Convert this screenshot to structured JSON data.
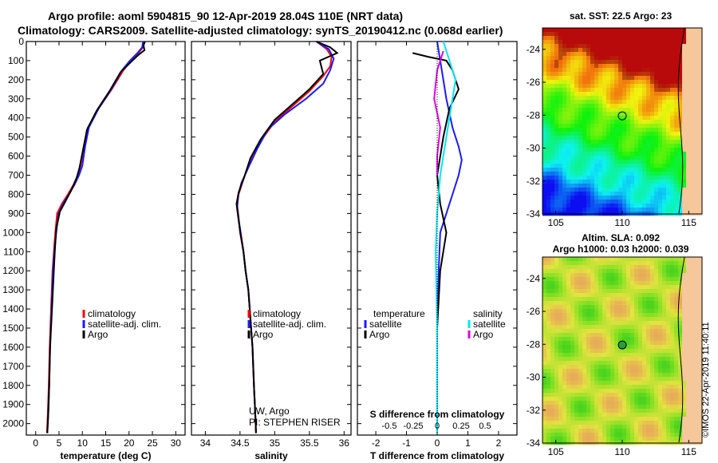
{
  "header": {
    "line1": "Argo profile: aoml 5904815_90 12-Apr-2019 28.04S 110E (NRT data)",
    "line2": "Climatology: CARS2009. Satellite-adjusted climatology: synTS_20190412.nc (0.068d earlier)"
  },
  "watermark": "©IMOS 22-Apr-2019 11:40:11",
  "colors": {
    "climatology": "#ff0000",
    "satellite": "#1a1aff",
    "argo": "#000000",
    "cyan": "#00e5ff",
    "magenta": "#e600e6"
  },
  "chart_data": [
    {
      "type": "line",
      "id": "temperature",
      "xlabel": "temperature (deg C)",
      "ylabel": "",
      "xlim": [
        -2,
        32
      ],
      "ylim": [
        2060,
        0
      ],
      "xticks": [
        "0",
        "5",
        "10",
        "15",
        "20",
        "25",
        "30"
      ],
      "xtick_values": [
        0,
        5,
        10,
        15,
        20,
        25,
        30
      ],
      "yticks": [
        "0",
        "100",
        "200",
        "300",
        "400",
        "500",
        "600",
        "700",
        "800",
        "900",
        "1000",
        "1100",
        "1200",
        "1300",
        "1400",
        "1500",
        "1600",
        "1700",
        "1800",
        "1900",
        "2000"
      ],
      "legend": {
        "position": "bottom-right",
        "items": [
          "climatology",
          "satellite-adj. clim.",
          "Argo"
        ]
      },
      "series": [
        {
          "name": "climatology",
          "color": "#ff0000",
          "x": [
            23.3,
            23.0,
            22.0,
            20.5,
            18.8,
            16.3,
            13.5,
            11.2,
            10.4,
            9.6,
            9.0,
            8.1,
            6.9,
            5.6,
            4.6,
            4.2,
            3.9,
            3.6,
            3.3,
            3.0,
            2.8,
            2.6,
            2.4
          ],
          "y": [
            0,
            30,
            60,
            100,
            150,
            250,
            350,
            450,
            550,
            650,
            700,
            750,
            800,
            850,
            900,
            1000,
            1100,
            1200,
            1400,
            1600,
            1800,
            1950,
            2050
          ]
        },
        {
          "name": "satellite-adj. clim.",
          "color": "#1a1aff",
          "x": [
            23.0,
            22.8,
            21.8,
            20.2,
            18.5,
            16.2,
            13.5,
            11.4,
            10.6,
            10.0,
            9.3,
            8.3,
            7.1,
            5.9,
            4.9,
            4.4,
            4.0,
            3.7,
            3.4,
            3.1,
            2.9,
            2.7,
            2.5
          ],
          "y": [
            0,
            30,
            60,
            100,
            150,
            250,
            350,
            450,
            550,
            650,
            700,
            750,
            800,
            850,
            900,
            1000,
            1100,
            1200,
            1400,
            1600,
            1800,
            1950,
            2050
          ]
        },
        {
          "name": "Argo",
          "color": "#000000",
          "x": [
            23.4,
            23.1,
            23.3,
            22.0,
            20.3,
            18.2,
            15.8,
            13.1,
            11.0,
            10.2,
            9.4,
            8.7,
            7.6,
            6.3,
            5.2,
            4.4,
            4.1,
            3.8,
            3.5,
            3.1,
            2.9,
            2.7,
            2.5
          ],
          "y": [
            0,
            20,
            45,
            70,
            110,
            160,
            260,
            360,
            460,
            560,
            660,
            720,
            780,
            840,
            890,
            980,
            1100,
            1250,
            1400,
            1600,
            1800,
            1950,
            2050
          ]
        }
      ]
    },
    {
      "type": "line",
      "id": "salinity",
      "xlabel": "salinity",
      "xlim": [
        33.8,
        36.1
      ],
      "ylim": [
        2060,
        0
      ],
      "xticks": [
        "34",
        "34.5",
        "35",
        "35.5",
        "36"
      ],
      "xtick_values": [
        34,
        34.5,
        35,
        35.5,
        36
      ],
      "legend": {
        "position": "bottom-right",
        "items": [
          "climatology",
          "satellite-adj. clim.",
          "Argo"
        ]
      },
      "annotations": [
        "UW, Argo",
        "PI: STEPHEN RISER"
      ],
      "series": [
        {
          "name": "climatology",
          "color": "#ff0000",
          "x": [
            35.6,
            35.75,
            35.82,
            35.8,
            35.7,
            35.5,
            35.25,
            35.0,
            34.8,
            34.65,
            34.55,
            34.48,
            34.46,
            34.48,
            34.5,
            34.55,
            34.58,
            34.62,
            34.65,
            34.68,
            34.7,
            34.72,
            34.73
          ],
          "y": [
            0,
            40,
            80,
            130,
            180,
            260,
            340,
            420,
            520,
            620,
            720,
            800,
            860,
            920,
            1000,
            1100,
            1200,
            1300,
            1450,
            1600,
            1800,
            1950,
            2050
          ]
        },
        {
          "name": "satellite-adj. clim.",
          "color": "#1a1aff",
          "x": [
            35.6,
            35.78,
            35.85,
            35.8,
            35.7,
            35.45,
            35.15,
            34.9,
            34.75,
            34.62,
            34.52,
            34.47,
            34.46,
            34.48,
            34.51,
            34.55,
            34.58,
            34.62,
            34.65,
            34.68,
            34.7,
            34.72,
            34.73
          ],
          "y": [
            0,
            40,
            90,
            150,
            220,
            300,
            380,
            460,
            560,
            660,
            740,
            810,
            870,
            930,
            1000,
            1100,
            1200,
            1300,
            1450,
            1600,
            1800,
            1950,
            2050
          ]
        },
        {
          "name": "Argo",
          "color": "#000000",
          "x": [
            35.6,
            35.8,
            35.9,
            35.65,
            35.7,
            35.5,
            35.25,
            35.0,
            34.8,
            34.65,
            34.56,
            34.48,
            34.45,
            34.47,
            34.5,
            34.55,
            34.58,
            34.62,
            34.65,
            34.68,
            34.7,
            34.72,
            34.73
          ],
          "y": [
            0,
            30,
            60,
            100,
            170,
            250,
            330,
            410,
            510,
            610,
            710,
            790,
            850,
            910,
            990,
            1100,
            1200,
            1300,
            1450,
            1600,
            1800,
            1950,
            2050
          ]
        }
      ]
    },
    {
      "type": "line",
      "id": "differences",
      "xlabel": "T difference from climatology",
      "xlabel_top": "S difference from climatology",
      "xlim": [
        -2.6,
        2.6
      ],
      "ylim": [
        2060,
        0
      ],
      "xticks": [
        "-2",
        "-1",
        "0",
        "1",
        "2"
      ],
      "xtick_values": [
        -2,
        -1,
        0,
        1,
        2
      ],
      "xticks_top": [
        "-0.5",
        "-0.25",
        "0",
        "0.25",
        "0.5"
      ],
      "legend_left": {
        "title": "temperature",
        "items": [
          "satellite",
          "Argo"
        ]
      },
      "legend_right": {
        "title": "salinity",
        "items": [
          "satellite",
          "Argo"
        ]
      },
      "series": [
        {
          "name": "temperature satellite",
          "color": "#1a1aff",
          "x": [
            0,
            0.1,
            0.2,
            0.3,
            0.5,
            0.7,
            0.8,
            0.7,
            0.5,
            0.3,
            0.1,
            0.05,
            0,
            0
          ],
          "y": [
            0,
            100,
            200,
            300,
            450,
            550,
            620,
            700,
            800,
            900,
            1000,
            1200,
            1500,
            2050
          ]
        },
        {
          "name": "temperature Argo",
          "color": "#000000",
          "x": [
            -0.8,
            -0.3,
            0.3,
            0.5,
            0.7,
            0.4,
            0.2,
            0,
            0.1,
            0.3,
            0.1,
            0,
            0
          ],
          "y": [
            60,
            80,
            100,
            150,
            250,
            350,
            500,
            700,
            850,
            1000,
            1200,
            1500,
            2050
          ]
        },
        {
          "name": "salinity satellite",
          "color": "#00e5ff",
          "x": [
            0.2,
            0.4,
            0.6,
            0.5,
            0.3,
            0.1,
            0,
            -0.05,
            0,
            0
          ],
          "y": [
            0,
            100,
            200,
            300,
            500,
            700,
            900,
            1100,
            1500,
            2050
          ]
        },
        {
          "name": "salinity Argo",
          "color": "#e600e6",
          "x": [
            0.2,
            0.0,
            -0.1,
            0.1,
            0.0,
            0
          ],
          "y": [
            50,
            150,
            300,
            450,
            600,
            700
          ]
        }
      ]
    },
    {
      "type": "heatmap",
      "id": "sst-map",
      "title": "sat. SST: 22.5 Argo: 23",
      "xticks": [
        "105",
        "110",
        "115"
      ],
      "xtick_values": [
        105,
        110,
        115
      ],
      "yticks": [
        "-24",
        "-26",
        "-28",
        "-30",
        "-32",
        "-34"
      ],
      "ytick_values": [
        -24,
        -26,
        -28,
        -30,
        -32,
        -34
      ],
      "xlim": [
        104,
        116
      ],
      "ylim": [
        -34,
        -22.7
      ],
      "marker": {
        "lon": 110,
        "lat": -28.04
      }
    },
    {
      "type": "heatmap",
      "id": "sla-map",
      "title": "Altim. SLA: 0.092",
      "subtitle": "Argo h1000: 0.03 h2000: 0.039",
      "xticks": [
        "105",
        "110",
        "115"
      ],
      "xtick_values": [
        105,
        110,
        115
      ],
      "yticks": [
        "-24",
        "-26",
        "-28",
        "-30",
        "-32",
        "-34"
      ],
      "ytick_values": [
        -24,
        -26,
        -28,
        -30,
        -32,
        -34
      ],
      "xlim": [
        104,
        116
      ],
      "ylim": [
        -34,
        -22.7
      ],
      "marker": {
        "lon": 110,
        "lat": -28.04
      }
    }
  ]
}
